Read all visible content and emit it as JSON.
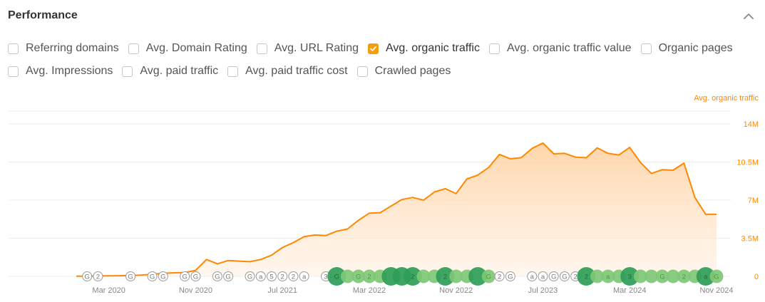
{
  "section": {
    "title": "Performance"
  },
  "icons": {
    "collapse": "chevron-up-icon",
    "checkmark": "checkmark-icon"
  },
  "colors": {
    "accent": "#ff8800",
    "checkbox_checked": "#f59e0b",
    "marker_dark": "#2e9d57",
    "marker_light": "#7fc876"
  },
  "metrics_row1": [
    {
      "label": "Referring domains",
      "checked": false
    },
    {
      "label": "Avg. Domain Rating",
      "checked": false
    },
    {
      "label": "Avg. URL Rating",
      "checked": false
    },
    {
      "label": "Avg. organic traffic",
      "checked": true
    },
    {
      "label": "Avg. organic traffic value",
      "checked": false
    },
    {
      "label": "Organic pages",
      "checked": false
    }
  ],
  "metrics_row2": [
    {
      "label": "Avg. Impressions",
      "checked": false
    },
    {
      "label": "Avg. paid traffic",
      "checked": false
    },
    {
      "label": "Avg. paid traffic cost",
      "checked": false
    },
    {
      "label": "Crawled pages",
      "checked": false
    }
  ],
  "chart_data": {
    "type": "area",
    "series": [
      {
        "name": "Avg. organic traffic",
        "x": [
          "2019-12",
          "2020-01",
          "2020-02",
          "2020-03",
          "2020-04",
          "2020-05",
          "2020-06",
          "2020-07",
          "2020-08",
          "2020-09",
          "2020-10",
          "2020-11",
          "2020-12",
          "2021-01",
          "2021-02",
          "2021-03",
          "2021-04",
          "2021-05",
          "2021-06",
          "2021-07",
          "2021-08",
          "2021-09",
          "2021-10",
          "2021-11",
          "2021-12",
          "2022-01",
          "2022-02",
          "2022-03",
          "2022-04",
          "2022-05",
          "2022-06",
          "2022-07",
          "2022-08",
          "2022-09",
          "2022-10",
          "2022-11",
          "2022-12",
          "2023-01",
          "2023-02",
          "2023-03",
          "2023-04",
          "2023-05",
          "2023-06",
          "2023-07",
          "2023-08",
          "2023-09",
          "2023-10",
          "2023-11",
          "2023-12",
          "2024-01",
          "2024-02",
          "2024-03",
          "2024-04",
          "2024-05",
          "2024-06",
          "2024-07",
          "2024-08",
          "2024-09",
          "2024-10",
          "2024-11"
        ],
        "values": [
          0.02,
          0.02,
          0.03,
          0.05,
          0.06,
          0.08,
          0.11,
          0.2,
          0.28,
          0.33,
          0.35,
          0.55,
          1.55,
          1.15,
          1.45,
          1.4,
          1.35,
          1.55,
          1.95,
          2.65,
          3.1,
          3.65,
          3.8,
          3.75,
          4.15,
          4.35,
          5.15,
          5.8,
          5.85,
          6.45,
          7.05,
          7.25,
          7.0,
          7.75,
          8.05,
          7.6,
          8.95,
          9.3,
          10.0,
          11.2,
          10.8,
          10.9,
          11.75,
          12.25,
          11.25,
          11.3,
          10.95,
          10.9,
          11.8,
          11.3,
          11.15,
          11.85,
          10.45,
          9.45,
          9.8,
          9.75,
          10.4,
          7.25,
          5.7,
          5.7
        ]
      }
    ],
    "x_tick_labels": [
      "Mar 2020",
      "Nov 2020",
      "Jul 2021",
      "Mar 2022",
      "Nov 2022",
      "Jul 2023",
      "Mar 2024",
      "Nov 2024"
    ],
    "y_tick_labels": [
      "14M",
      "10.5M",
      "7M",
      "3.5M",
      "0"
    ],
    "y_ticks": [
      14,
      10.5,
      7,
      3.5,
      0
    ],
    "ylim": [
      0,
      14
    ],
    "ylabel": "Avg. organic traffic",
    "grid": true,
    "annotations": [
      {
        "x": "2020-01",
        "text": "G",
        "style": "outline"
      },
      {
        "x": "2020-02",
        "text": "2",
        "style": "outline"
      },
      {
        "x": "2020-05",
        "text": "G",
        "style": "outline"
      },
      {
        "x": "2020-07",
        "text": "G",
        "style": "outline"
      },
      {
        "x": "2020-08",
        "text": "G",
        "style": "outline"
      },
      {
        "x": "2020-10",
        "text": "G",
        "style": "outline"
      },
      {
        "x": "2020-11",
        "text": "G",
        "style": "outline"
      },
      {
        "x": "2021-01",
        "text": "G",
        "style": "outline"
      },
      {
        "x": "2021-02",
        "text": "G",
        "style": "outline"
      },
      {
        "x": "2021-04",
        "text": "G",
        "style": "outline"
      },
      {
        "x": "2021-05",
        "text": "a",
        "style": "outline"
      },
      {
        "x": "2021-06",
        "text": "5",
        "style": "outline"
      },
      {
        "x": "2021-07",
        "text": "2",
        "style": "outline"
      },
      {
        "x": "2021-08",
        "text": "2",
        "style": "outline"
      },
      {
        "x": "2021-09",
        "text": "a",
        "style": "outline"
      },
      {
        "x": "2021-11",
        "text": "3",
        "style": "outline"
      },
      {
        "x": "2021-12",
        "text": "G",
        "style": "dark",
        "size": "large"
      },
      {
        "x": "2022-01",
        "text": "",
        "style": "light"
      },
      {
        "x": "2022-02",
        "text": "G",
        "style": "light"
      },
      {
        "x": "2022-03",
        "text": "2",
        "style": "light"
      },
      {
        "x": "2022-04",
        "text": "",
        "style": "light"
      },
      {
        "x": "2022-05",
        "text": "",
        "style": "dark",
        "size": "large"
      },
      {
        "x": "2022-06",
        "text": "",
        "style": "dark",
        "size": "large"
      },
      {
        "x": "2022-07",
        "text": "2",
        "style": "dark",
        "size": "large"
      },
      {
        "x": "2022-08",
        "text": "",
        "style": "light"
      },
      {
        "x": "2022-09",
        "text": "",
        "style": "light"
      },
      {
        "x": "2022-10",
        "text": "2",
        "style": "dark",
        "size": "large"
      },
      {
        "x": "2022-11",
        "text": "",
        "style": "light"
      },
      {
        "x": "2022-12",
        "text": "",
        "style": "light"
      },
      {
        "x": "2023-01",
        "text": "",
        "style": "dark",
        "size": "large"
      },
      {
        "x": "2023-02",
        "text": "G",
        "style": "light"
      },
      {
        "x": "2023-03",
        "text": "2",
        "style": "outline"
      },
      {
        "x": "2023-04",
        "text": "G",
        "style": "outline"
      },
      {
        "x": "2023-06",
        "text": "a",
        "style": "outline"
      },
      {
        "x": "2023-07",
        "text": "a",
        "style": "outline"
      },
      {
        "x": "2023-08",
        "text": "G",
        "style": "outline"
      },
      {
        "x": "2023-09",
        "text": "G",
        "style": "outline"
      },
      {
        "x": "2023-10",
        "text": "2",
        "style": "outline"
      },
      {
        "x": "2023-11",
        "text": "2",
        "style": "dark",
        "size": "large"
      },
      {
        "x": "2023-12",
        "text": "",
        "style": "light"
      },
      {
        "x": "2024-01",
        "text": "a",
        "style": "light"
      },
      {
        "x": "2024-02",
        "text": "",
        "style": "light"
      },
      {
        "x": "2024-03",
        "text": "3",
        "style": "dark",
        "size": "large"
      },
      {
        "x": "2024-04",
        "text": "",
        "style": "light"
      },
      {
        "x": "2024-05",
        "text": "",
        "style": "light"
      },
      {
        "x": "2024-06",
        "text": "G",
        "style": "light"
      },
      {
        "x": "2024-07",
        "text": "",
        "style": "light"
      },
      {
        "x": "2024-08",
        "text": "2",
        "style": "light"
      },
      {
        "x": "2024-09",
        "text": "",
        "style": "light"
      },
      {
        "x": "2024-10",
        "text": "a",
        "style": "dark",
        "size": "large"
      },
      {
        "x": "2024-11",
        "text": "G",
        "style": "light"
      }
    ]
  }
}
